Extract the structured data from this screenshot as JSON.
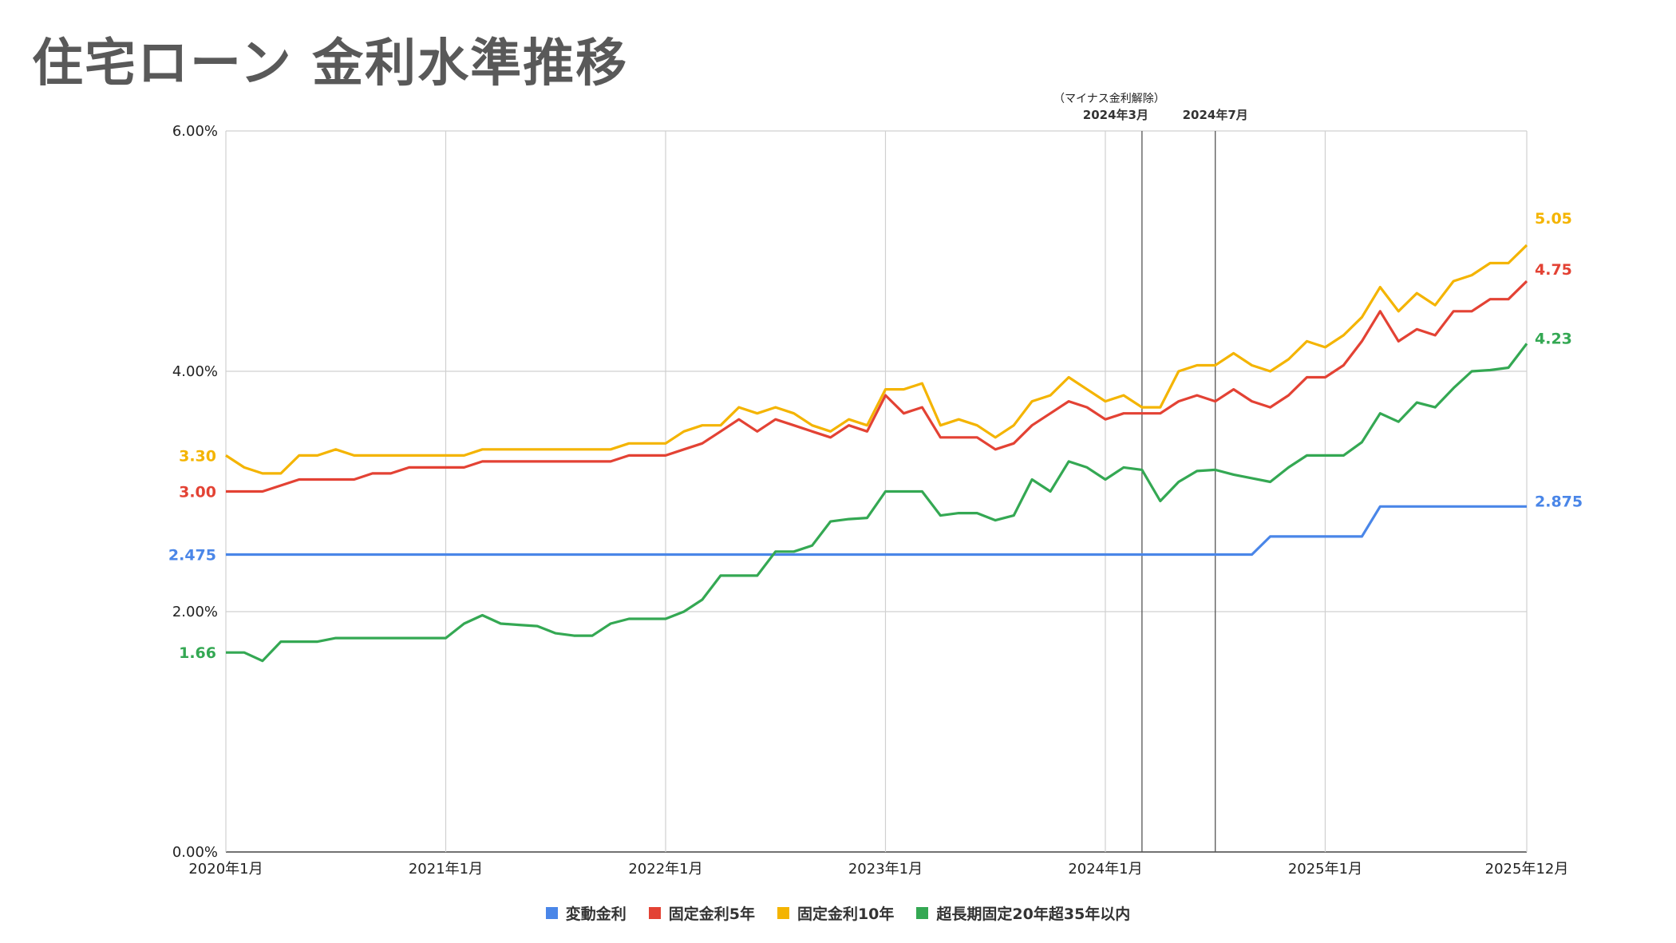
{
  "title": "住宅ローン 金利水準推移",
  "chart_data": {
    "type": "line",
    "ylim": [
      0,
      6
    ],
    "y_ticks": [
      {
        "value": 0,
        "label": "0.00%"
      },
      {
        "value": 2,
        "label": "2.00%"
      },
      {
        "value": 4,
        "label": "4.00%"
      },
      {
        "value": 6,
        "label": "6.00%"
      }
    ],
    "x_ticks": [
      {
        "index": 0,
        "label": "2020年1月"
      },
      {
        "index": 12,
        "label": "2021年1月"
      },
      {
        "index": 24,
        "label": "2022年1月"
      },
      {
        "index": 36,
        "label": "2023年1月"
      },
      {
        "index": 48,
        "label": "2024年1月"
      },
      {
        "index": 60,
        "label": "2025年1月"
      },
      {
        "index": 71,
        "label": "2025年12月"
      }
    ],
    "annotations": [
      {
        "index": 50,
        "note": "（マイナス金利解除）",
        "label": "2024年3月"
      },
      {
        "index": 54,
        "note": "",
        "label": "2024年7月"
      }
    ],
    "grid": true,
    "legend_position": "bottom",
    "series": [
      {
        "name": "変動金利",
        "color": "#4a86e8",
        "start_label": "2.475",
        "end_label": "2.875",
        "values": [
          2.475,
          2.475,
          2.475,
          2.475,
          2.475,
          2.475,
          2.475,
          2.475,
          2.475,
          2.475,
          2.475,
          2.475,
          2.475,
          2.475,
          2.475,
          2.475,
          2.475,
          2.475,
          2.475,
          2.475,
          2.475,
          2.475,
          2.475,
          2.475,
          2.475,
          2.475,
          2.475,
          2.475,
          2.475,
          2.475,
          2.475,
          2.475,
          2.475,
          2.475,
          2.475,
          2.475,
          2.475,
          2.475,
          2.475,
          2.475,
          2.475,
          2.475,
          2.475,
          2.475,
          2.475,
          2.475,
          2.475,
          2.475,
          2.475,
          2.475,
          2.475,
          2.475,
          2.475,
          2.475,
          2.475,
          2.475,
          2.475,
          2.625,
          2.625,
          2.625,
          2.625,
          2.625,
          2.625,
          2.875,
          2.875,
          2.875,
          2.875,
          2.875,
          2.875,
          2.875,
          2.875,
          2.875
        ]
      },
      {
        "name": "固定金利5年",
        "color": "#e34234",
        "start_label": "3.00",
        "end_label": "4.75",
        "values": [
          3.0,
          3.0,
          3.0,
          3.05,
          3.1,
          3.1,
          3.1,
          3.1,
          3.15,
          3.15,
          3.2,
          3.2,
          3.2,
          3.2,
          3.25,
          3.25,
          3.25,
          3.25,
          3.25,
          3.25,
          3.25,
          3.25,
          3.3,
          3.3,
          3.3,
          3.35,
          3.4,
          3.5,
          3.6,
          3.5,
          3.6,
          3.55,
          3.5,
          3.45,
          3.55,
          3.5,
          3.8,
          3.65,
          3.7,
          3.45,
          3.45,
          3.45,
          3.35,
          3.4,
          3.55,
          3.65,
          3.75,
          3.7,
          3.6,
          3.65,
          3.65,
          3.65,
          3.75,
          3.8,
          3.75,
          3.85,
          3.75,
          3.7,
          3.8,
          3.95,
          3.95,
          4.05,
          4.25,
          4.5,
          4.25,
          4.35,
          4.3,
          4.5,
          4.5,
          4.6,
          4.6,
          4.75
        ]
      },
      {
        "name": "固定金利10年",
        "color": "#f4b400",
        "start_label": "3.30",
        "end_label": "5.05",
        "values": [
          3.3,
          3.2,
          3.15,
          3.15,
          3.3,
          3.3,
          3.35,
          3.3,
          3.3,
          3.3,
          3.3,
          3.3,
          3.3,
          3.3,
          3.35,
          3.35,
          3.35,
          3.35,
          3.35,
          3.35,
          3.35,
          3.35,
          3.4,
          3.4,
          3.4,
          3.5,
          3.55,
          3.55,
          3.7,
          3.65,
          3.7,
          3.65,
          3.55,
          3.5,
          3.6,
          3.55,
          3.85,
          3.85,
          3.9,
          3.55,
          3.6,
          3.55,
          3.45,
          3.55,
          3.75,
          3.8,
          3.95,
          3.85,
          3.75,
          3.8,
          3.7,
          3.7,
          4.0,
          4.05,
          4.05,
          4.15,
          4.05,
          4.0,
          4.1,
          4.25,
          4.2,
          4.3,
          4.45,
          4.7,
          4.5,
          4.65,
          4.55,
          4.75,
          4.8,
          4.9,
          4.9,
          5.05
        ]
      },
      {
        "name": "超長期固定20年超35年以内",
        "color": "#34a853",
        "start_label": "1.66",
        "end_label": "4.23",
        "values": [
          1.66,
          1.66,
          1.59,
          1.75,
          1.75,
          1.75,
          1.78,
          1.78,
          1.78,
          1.78,
          1.78,
          1.78,
          1.78,
          1.9,
          1.97,
          1.9,
          1.89,
          1.88,
          1.82,
          1.8,
          1.8,
          1.9,
          1.94,
          1.94,
          1.94,
          2.0,
          2.1,
          2.3,
          2.3,
          2.3,
          2.5,
          2.5,
          2.55,
          2.75,
          2.77,
          2.78,
          3.0,
          3.0,
          3.0,
          2.8,
          2.82,
          2.82,
          2.76,
          2.8,
          3.1,
          3.0,
          3.25,
          3.2,
          3.1,
          3.2,
          3.18,
          2.92,
          3.08,
          3.17,
          3.18,
          3.14,
          3.11,
          3.08,
          3.2,
          3.3,
          3.3,
          3.3,
          3.41,
          3.65,
          3.58,
          3.74,
          3.7,
          3.86,
          4.0,
          4.01,
          4.03,
          4.23
        ]
      }
    ]
  }
}
